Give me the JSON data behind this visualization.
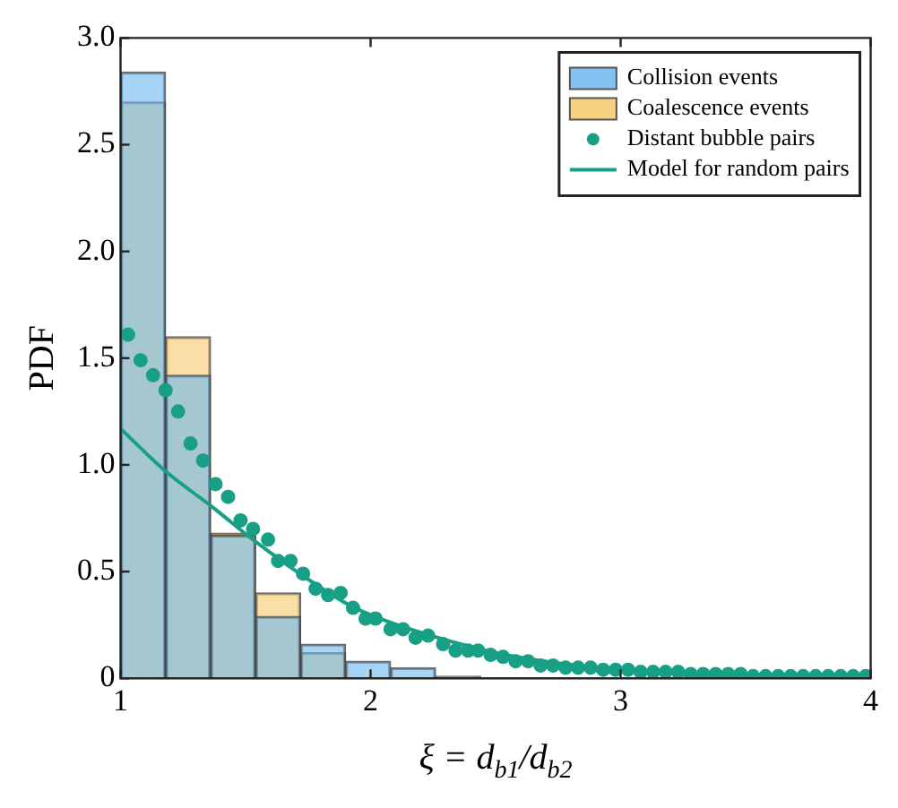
{
  "chart_data": {
    "type": "histogram",
    "xlabel": "ξ = d$_{b1}$/d$_{b2}$",
    "ylabel": "PDF",
    "bins": [
      1,
      1.18,
      1.36,
      1.54,
      1.72,
      1.9,
      2.08,
      2.26,
      2.44
    ],
    "series": [
      {
        "name": "Collision events",
        "color": "#6cb8ee",
        "values": [
          2.84,
          1.42,
          0.67,
          0.29,
          0.16,
          0.08,
          0.05,
          0.01
        ]
      },
      {
        "name": "Coalescence events",
        "color": "#f5c96a",
        "values": [
          2.7,
          1.6,
          0.68,
          0.4,
          0.12,
          0,
          0,
          0
        ]
      },
      {
        "name": "Distant bubble pairs",
        "type": "scatter",
        "color": "#17a085",
        "marker": "circle",
        "x": [
          1.03,
          1.08,
          1.13,
          1.18,
          1.23,
          1.28,
          1.33,
          1.38,
          1.43,
          1.48,
          1.53,
          1.59,
          1.63,
          1.68,
          1.73,
          1.78,
          1.83,
          1.88,
          1.93,
          1.98,
          2.02,
          2.08,
          2.13,
          2.18,
          2.23,
          2.29,
          2.34,
          2.39,
          2.43,
          2.48,
          2.53,
          2.58,
          2.63,
          2.68,
          2.73,
          2.78,
          2.83,
          2.88,
          2.93,
          2.98,
          3.03,
          3.08,
          3.13,
          3.18,
          3.23,
          3.28,
          3.33,
          3.38,
          3.43,
          3.48,
          3.53,
          3.58,
          3.63,
          3.68,
          3.73,
          3.78,
          3.83,
          3.88,
          3.93,
          3.98
        ],
        "values": [
          1.61,
          1.49,
          1.42,
          1.35,
          1.25,
          1.1,
          1.02,
          0.91,
          0.85,
          0.74,
          0.7,
          0.65,
          0.55,
          0.55,
          0.49,
          0.42,
          0.39,
          0.4,
          0.33,
          0.28,
          0.28,
          0.23,
          0.23,
          0.19,
          0.2,
          0.16,
          0.13,
          0.13,
          0.13,
          0.11,
          0.1,
          0.08,
          0.08,
          0.06,
          0.06,
          0.05,
          0.05,
          0.05,
          0.04,
          0.04,
          0.04,
          0.03,
          0.03,
          0.03,
          0.03,
          0.02,
          0.02,
          0.02,
          0.02,
          0.02,
          0.01,
          0.01,
          0.01,
          0.01,
          0.01,
          0.01,
          0.01,
          0.01,
          0.01,
          0.01
        ]
      },
      {
        "name": "Model for random pairs",
        "type": "line",
        "color": "#17a085",
        "marker": "none",
        "line_style": "solid",
        "x": [
          1,
          1.18,
          1.37,
          1.54,
          1.73,
          1.92,
          2.06,
          2.3,
          2.54,
          3,
          3.48,
          4
        ],
        "values": [
          1.17,
          0.97,
          0.8,
          0.64,
          0.48,
          0.34,
          0.27,
          0.18,
          0.11,
          0.04,
          0.02,
          0.01
        ]
      }
    ],
    "xlim": [
      1,
      4
    ],
    "xticks": [
      1,
      2,
      3,
      4
    ],
    "ylim": [
      0,
      3
    ],
    "yticks": [
      {
        "value": 0,
        "label": "0"
      },
      {
        "value": 0.5,
        "label": "0.5"
      },
      {
        "value": 1,
        "label": "1.0"
      },
      {
        "value": 1.5,
        "label": "1.5"
      },
      {
        "value": 2,
        "label": "2.0"
      },
      {
        "value": 2.5,
        "label": "2.5"
      },
      {
        "value": 3,
        "label": "3.0"
      }
    ],
    "grid": false,
    "legend": "top right"
  }
}
